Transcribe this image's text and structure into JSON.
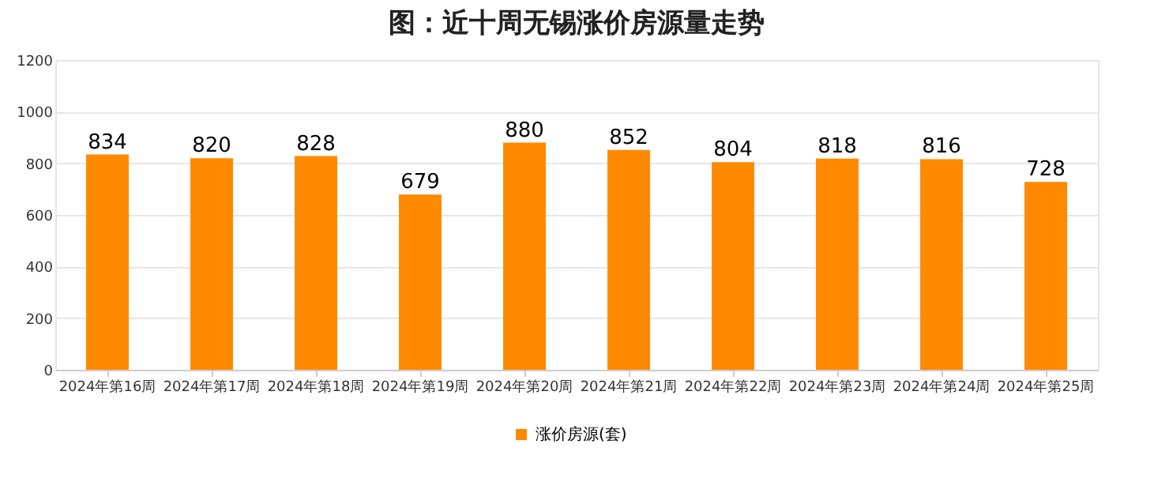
{
  "chart_data": {
    "type": "bar",
    "title": "图：近十周无锡涨价房源量走势",
    "categories": [
      "2024年第16周",
      "2024年第17周",
      "2024年第18周",
      "2024年第19周",
      "2024年第20周",
      "2024年第21周",
      "2024年第22周",
      "2024年第23周",
      "2024年第24周",
      "2024年第25周"
    ],
    "series": [
      {
        "name": "涨价房源(套)",
        "color": "#ff8a00",
        "values": [
          834,
          820,
          828,
          679,
          880,
          852,
          804,
          818,
          816,
          728
        ]
      }
    ],
    "ylim": [
      0,
      1200
    ],
    "yticks": [
      0,
      200,
      400,
      600,
      800,
      1000,
      1200
    ],
    "grid": "y",
    "legend": "bottom",
    "data_labels": true
  }
}
